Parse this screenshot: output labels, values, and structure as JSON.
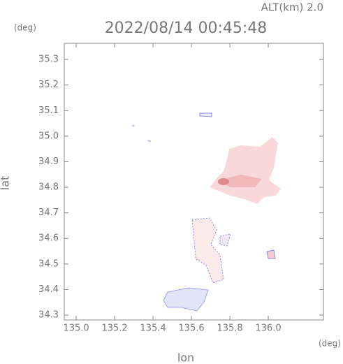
{
  "chart_data": {
    "type": "radar-map",
    "title": "2022/08/14 00:45:48",
    "subtitle": "ALT(km) 2.0",
    "y_unit": "(deg)",
    "x_unit": "(deg)",
    "x_label": "lon",
    "y_label": "lat",
    "xlim": [
      134.938,
      136.287
    ],
    "ylim": [
      34.281,
      35.363
    ],
    "xticks": [
      {
        "value": 135.0,
        "label": "135.0"
      },
      135.2,
      135.4,
      135.6,
      135.8,
      {
        "value": 136.0,
        "label": "136.0"
      }
    ],
    "yticks": [
      34.3,
      34.4,
      34.5,
      34.6,
      34.7,
      34.8,
      34.9,
      {
        "value": 35.0,
        "label": "35.0"
      },
      35.1,
      35.2,
      35.3
    ]
  }
}
